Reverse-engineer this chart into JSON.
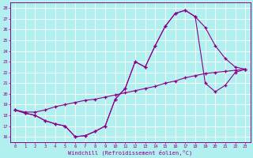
{
  "xlabel": "Windchill (Refroidissement éolien,°C)",
  "bg_color": "#b2f0f0",
  "line_color": "#8b008b",
  "grid_color": "#ffffff",
  "xlim": [
    -0.5,
    23.5
  ],
  "ylim": [
    15.5,
    28.5
  ],
  "xticks": [
    0,
    1,
    2,
    3,
    4,
    5,
    6,
    7,
    8,
    9,
    10,
    11,
    12,
    13,
    14,
    15,
    16,
    17,
    18,
    19,
    20,
    21,
    22,
    23
  ],
  "yticks": [
    16,
    17,
    18,
    19,
    20,
    21,
    22,
    23,
    24,
    25,
    26,
    27,
    28
  ],
  "line1_x": [
    0,
    1,
    2,
    3,
    4,
    5,
    6,
    7,
    8,
    9,
    10,
    11,
    12,
    13,
    14,
    15,
    16,
    17,
    18,
    19,
    20,
    21,
    22,
    23
  ],
  "line1_y": [
    18.5,
    18.2,
    18.0,
    17.5,
    17.2,
    17.0,
    16.0,
    16.1,
    16.5,
    17.0,
    19.5,
    20.5,
    23.0,
    22.5,
    24.5,
    26.3,
    27.5,
    27.8,
    27.2,
    26.2,
    24.5,
    23.3,
    22.5,
    22.3
  ],
  "line2_x": [
    0,
    1,
    2,
    3,
    4,
    5,
    6,
    7,
    8,
    9,
    10,
    11,
    12,
    13,
    14,
    15,
    16,
    17,
    18,
    19,
    20,
    21,
    22,
    23
  ],
  "line2_y": [
    18.5,
    18.2,
    18.0,
    17.5,
    17.2,
    17.0,
    16.0,
    16.1,
    16.5,
    17.0,
    19.5,
    20.5,
    23.0,
    22.5,
    24.5,
    26.3,
    27.5,
    27.8,
    27.2,
    21.0,
    20.2,
    20.8,
    22.0,
    22.3
  ],
  "line3_x": [
    0,
    1,
    2,
    3,
    4,
    5,
    6,
    7,
    8,
    9,
    10,
    11,
    12,
    13,
    14,
    15,
    16,
    17,
    18,
    19,
    20,
    21,
    22,
    23
  ],
  "line3_y": [
    18.5,
    18.3,
    18.3,
    18.5,
    18.8,
    19.0,
    19.2,
    19.4,
    19.5,
    19.7,
    19.9,
    20.1,
    20.3,
    20.5,
    20.7,
    21.0,
    21.2,
    21.5,
    21.7,
    21.9,
    22.0,
    22.1,
    22.2,
    22.3
  ]
}
